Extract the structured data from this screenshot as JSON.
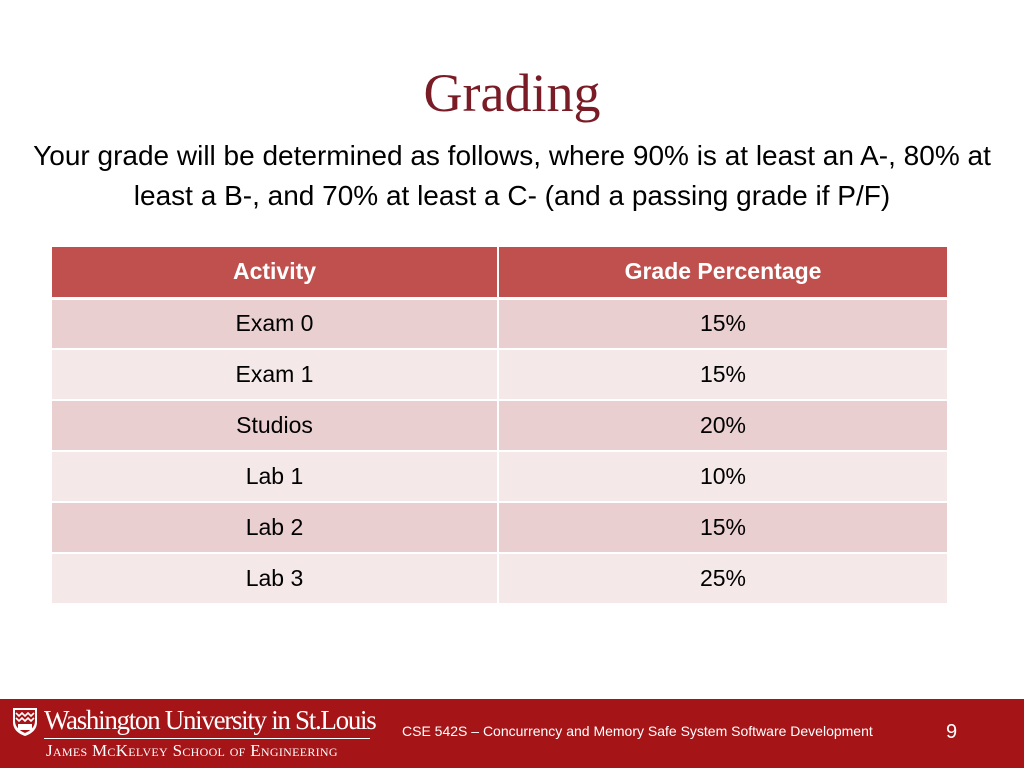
{
  "slide": {
    "title": "Grading",
    "intro": "Your grade will be determined as follows, where 90% is at least an A-, 80% at least a B-, and 70% at least a C- (and a passing grade if P/F)"
  },
  "table": {
    "headers": [
      "Activity",
      "Grade Percentage"
    ],
    "rows": [
      {
        "activity": "Exam 0",
        "percent": "15%"
      },
      {
        "activity": "Exam 1",
        "percent": "15%"
      },
      {
        "activity": "Studios",
        "percent": "20%"
      },
      {
        "activity": "Lab 1",
        "percent": "10%"
      },
      {
        "activity": "Lab 2",
        "percent": "15%"
      },
      {
        "activity": "Lab 3",
        "percent": "25%"
      }
    ]
  },
  "footer": {
    "university": "Washington University in St.Louis",
    "school": "James McKelvey School of Engineering",
    "course": "CSE 542S – Concurrency and Memory Safe System Software Development",
    "page_number": "9",
    "background_color": "#a51417"
  },
  "colors": {
    "title": "#7a1c26",
    "header_row": "#c0504d",
    "row_dark": "#e9cfd0",
    "row_light": "#f4e8e8"
  }
}
